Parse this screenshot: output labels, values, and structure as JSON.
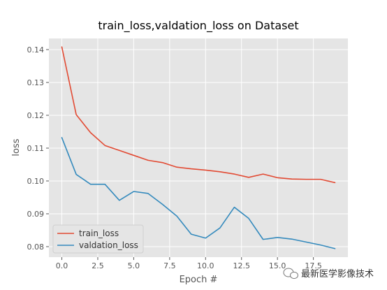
{
  "chart_data": {
    "type": "line",
    "title": "train_loss,valdation_loss on Dataset",
    "xlabel": "Epoch #",
    "ylabel": "loss",
    "xlim": [
      -0.9,
      19.9
    ],
    "ylim": [
      0.0768,
      0.1434
    ],
    "x_ticks": [
      0.0,
      2.5,
      5.0,
      7.5,
      10.0,
      12.5,
      15.0,
      17.5
    ],
    "x_tick_labels": [
      "0.0",
      "2.5",
      "5.0",
      "7.5",
      "10.0",
      "12.5",
      "15.0",
      "17.5"
    ],
    "y_ticks": [
      0.08,
      0.09,
      0.1,
      0.11,
      0.12,
      0.13,
      0.14
    ],
    "y_tick_labels": [
      "0.08",
      "0.09",
      "0.10",
      "0.11",
      "0.12",
      "0.13",
      "0.14"
    ],
    "grid": true,
    "legend_position": "lower-left",
    "x": [
      0,
      1,
      2,
      3,
      4,
      5,
      6,
      7,
      8,
      9,
      10,
      11,
      12,
      13,
      14,
      15,
      16,
      17,
      18,
      19
    ],
    "series": [
      {
        "name": "train_loss",
        "color": "#e24a33",
        "values": [
          0.1408,
          0.1202,
          0.1147,
          0.1108,
          0.1093,
          0.1078,
          0.1063,
          0.1056,
          0.1042,
          0.1037,
          0.1033,
          0.1028,
          0.1021,
          0.1011,
          0.1021,
          0.101,
          0.1006,
          0.1005,
          0.1005,
          0.0995
        ]
      },
      {
        "name": "valdation_loss",
        "color": "#348abd",
        "values": [
          0.1132,
          0.102,
          0.099,
          0.099,
          0.0941,
          0.0968,
          0.0962,
          0.0929,
          0.0893,
          0.0838,
          0.0826,
          0.0857,
          0.092,
          0.0886,
          0.0822,
          0.0828,
          0.0823,
          0.0814,
          0.0805,
          0.0794
        ]
      }
    ]
  },
  "watermark": {
    "text": "最新医学影像技术",
    "icon": "wechat-icon"
  }
}
